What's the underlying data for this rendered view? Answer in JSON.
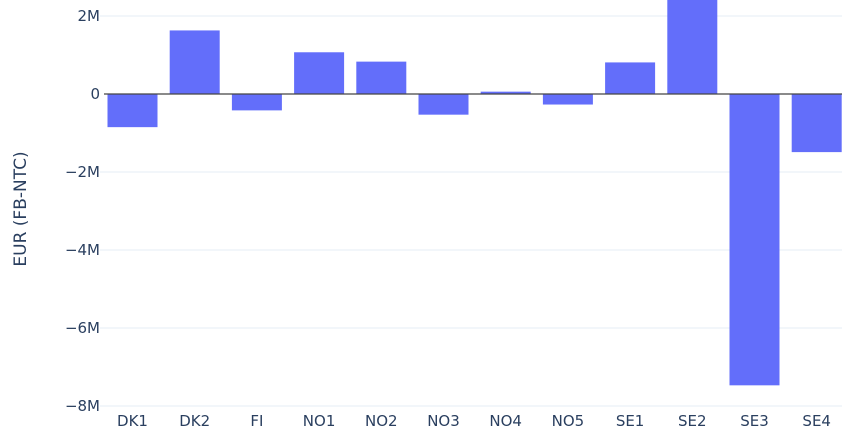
{
  "chart_data": {
    "type": "bar",
    "title": "",
    "xlabel": "",
    "ylabel": "EUR (FB-NTC)",
    "categories": [
      "DK1",
      "DK2",
      "FI",
      "NO1",
      "NO2",
      "NO3",
      "NO4",
      "NO5",
      "SE1",
      "SE2",
      "SE3",
      "SE4"
    ],
    "values": [
      -0.85,
      1.63,
      -0.42,
      1.07,
      0.83,
      -0.53,
      0.06,
      -0.27,
      0.81,
      2.5,
      -7.47,
      -1.49
    ],
    "value_unit": "M EUR",
    "ylim": [
      -8,
      2.4
    ],
    "yticks": [
      2,
      0,
      -2,
      -4,
      -6,
      -8
    ],
    "ytick_labels": [
      "2M",
      "0",
      "−2M",
      "−4M",
      "−6M",
      "−8M"
    ],
    "grid": true,
    "legend": "none",
    "colors": {
      "bar": "#636efa",
      "grid": "#e5ecf6",
      "zeroline": "#444444",
      "text": "#2a3f5f"
    }
  }
}
